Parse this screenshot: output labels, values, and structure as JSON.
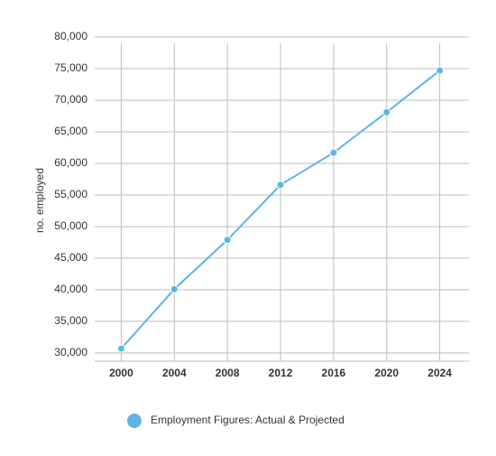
{
  "chart_data": {
    "type": "line",
    "y_label": "no. employed",
    "x": [
      2000,
      2004,
      2008,
      2012,
      2016,
      2020,
      2024
    ],
    "series": [
      {
        "name": "Employment Figures: Actual & Projected",
        "color": "#5db5e3",
        "values": [
          30700,
          40100,
          47900,
          56600,
          61700,
          68100,
          74700
        ]
      }
    ],
    "xlim": [
      1998,
      2026.2
    ],
    "xticks": [
      2000,
      2004,
      2008,
      2012,
      2016,
      2020,
      2024
    ],
    "ylim": [
      28700,
      80000
    ],
    "yticks": [
      {
        "value": 30000,
        "label": "30,000"
      },
      {
        "value": 35000,
        "label": "35,000"
      },
      {
        "value": 40000,
        "label": "40,000"
      },
      {
        "value": 45000,
        "label": "45,000"
      },
      {
        "value": 50000,
        "label": "50,000"
      },
      {
        "value": 55000,
        "label": "55,000"
      },
      {
        "value": 60000,
        "label": "60,000"
      },
      {
        "value": 65000,
        "label": "65,000"
      },
      {
        "value": 70000,
        "label": "70,000"
      },
      {
        "value": 75000,
        "label": "75,000"
      },
      {
        "value": 80000,
        "label": "80,000"
      }
    ],
    "grid": true
  }
}
